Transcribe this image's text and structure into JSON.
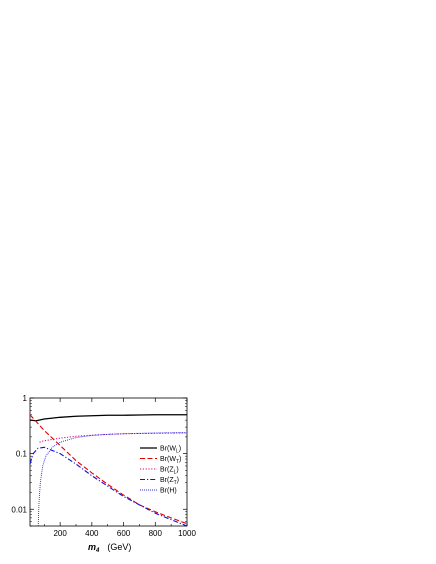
{
  "chart_data": {
    "type": "line",
    "xlabel": {
      "var": "m",
      "sub": "4",
      "unit": "(GeV)"
    },
    "ylabel": "",
    "xlim": [
      10,
      1000
    ],
    "ylim": [
      0.005,
      1
    ],
    "yscale": "log",
    "x_ticks": [
      200,
      400,
      600,
      800,
      1000
    ],
    "x_tick_labels": [
      "200",
      "400",
      "600",
      "800",
      "1000"
    ],
    "y_ticks": [
      0.01,
      0.1,
      1
    ],
    "y_tick_labels": [
      "0.01",
      "0.1",
      "1"
    ],
    "legend_position": "bottom-right",
    "series": [
      {
        "name": "Br(W_L)",
        "label_main": "Br(W",
        "label_sub": "L",
        "label_end": ")",
        "color": "#000000",
        "style": "solid",
        "x": [
          10,
          50,
          100,
          200,
          300,
          400,
          500,
          600,
          700,
          800,
          900,
          1000
        ],
        "y": [
          0.4,
          0.39,
          0.42,
          0.45,
          0.47,
          0.48,
          0.49,
          0.49,
          0.495,
          0.5,
          0.5,
          0.5
        ]
      },
      {
        "name": "Br(W_T)",
        "label_main": "Br(W",
        "label_sub": "T",
        "label_end": ")",
        "color": "#e00000",
        "style": "dashed",
        "x": [
          10,
          100,
          200,
          300,
          400,
          500,
          600,
          700,
          800,
          900,
          1000
        ],
        "y": [
          0.5,
          0.26,
          0.14,
          0.075,
          0.045,
          0.028,
          0.018,
          0.012,
          0.009,
          0.007,
          0.0055
        ]
      },
      {
        "name": "Br(Z_L)",
        "label_main": "Br(Z",
        "label_sub": "L",
        "label_end": ")",
        "color": "#e0006e",
        "style": "dotted",
        "x": [
          70,
          80,
          100,
          150,
          200,
          300,
          400,
          500,
          600,
          700,
          800,
          900,
          1000
        ],
        "y": [
          0.16,
          0.165,
          0.17,
          0.18,
          0.19,
          0.205,
          0.215,
          0.222,
          0.227,
          0.23,
          0.232,
          0.234,
          0.235
        ]
      },
      {
        "name": "Br(Z_T)",
        "label_main": "Br(Z",
        "label_sub": "T",
        "label_end": ")",
        "color": "#1010e0",
        "style": "dashdot",
        "x": [
          10,
          30,
          60,
          100,
          200,
          300,
          400,
          500,
          600,
          700,
          800,
          900,
          1000
        ],
        "y": [
          0.065,
          0.1,
          0.125,
          0.13,
          0.1,
          0.065,
          0.04,
          0.026,
          0.017,
          0.012,
          0.0085,
          0.0065,
          0.005
        ]
      },
      {
        "name": "Br(H)",
        "label_main": "Br(H)",
        "label_sub": "",
        "label_end": "",
        "color": "#1010e0",
        "style": "shortdot",
        "x": [
          62,
          66,
          75,
          90,
          110,
          150,
          200,
          300,
          400,
          500,
          600,
          700,
          800,
          900,
          1000
        ],
        "y": [
          0.005,
          0.012,
          0.03,
          0.06,
          0.09,
          0.13,
          0.16,
          0.195,
          0.212,
          0.222,
          0.228,
          0.232,
          0.235,
          0.237,
          0.239
        ]
      }
    ]
  }
}
